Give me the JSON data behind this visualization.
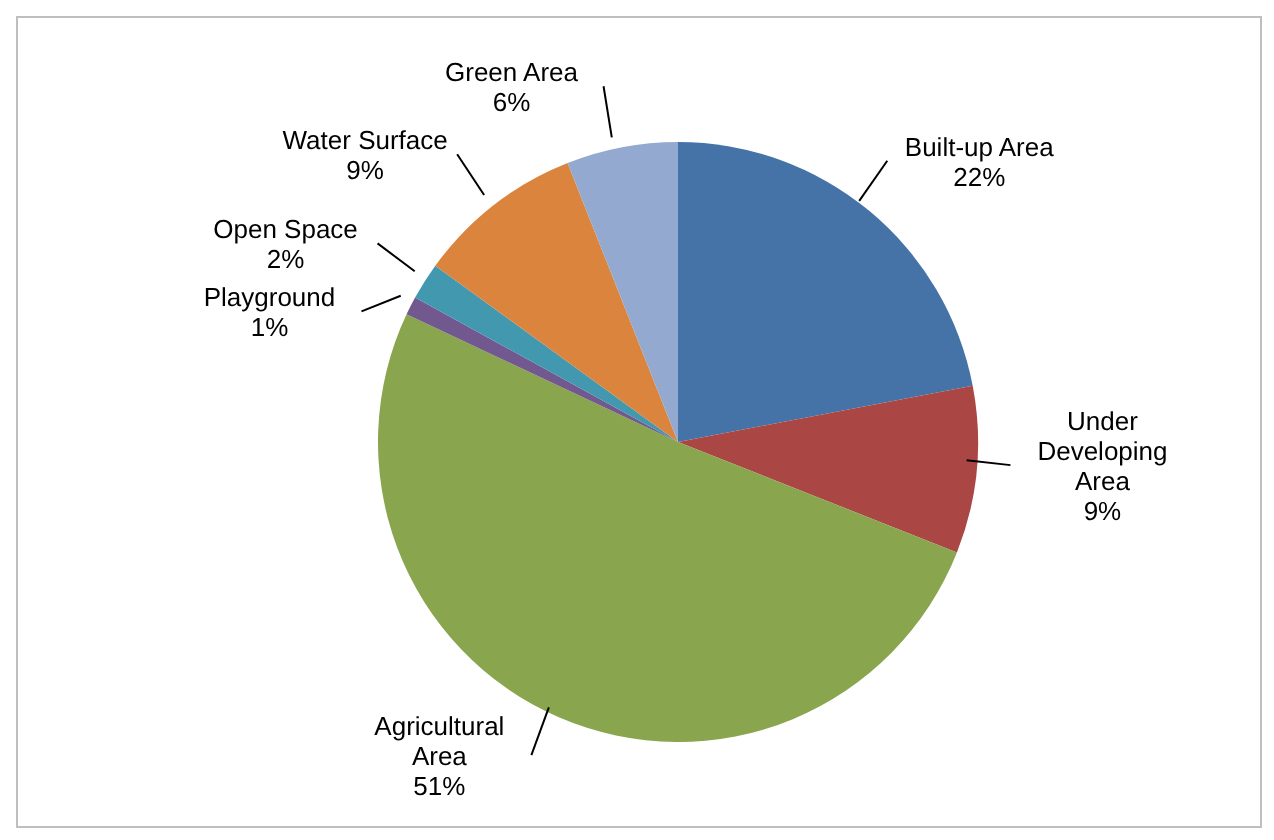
{
  "chart_data": {
    "type": "pie",
    "categories": [
      "Built-up Area",
      "Under Developing Area",
      "Agricultural Area",
      "Playground",
      "Open Space",
      "Water Surface",
      "Green Area"
    ],
    "values": [
      22,
      9,
      51,
      1,
      2,
      9,
      6
    ],
    "value_labels": [
      "22%",
      "9%",
      "51%",
      "1%",
      "2%",
      "9%",
      "6%"
    ],
    "colors": [
      "#4572a7",
      "#aa4643",
      "#89a54e",
      "#71588f",
      "#4198af",
      "#db843d",
      "#93a9cf"
    ],
    "legend": false
  }
}
